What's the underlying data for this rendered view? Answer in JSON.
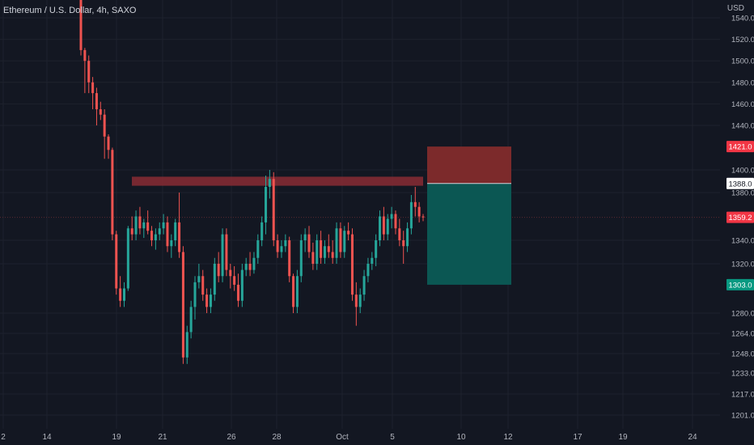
{
  "header": {
    "symbol_title": "Ethereum / U.S. Dollar, 4h, SAXO",
    "currency": "USD"
  },
  "colors": {
    "background": "#131722",
    "up": "#26a69a",
    "down": "#ef5350",
    "grid": "#1e222d",
    "axis_text": "#b2b5be",
    "resistance_zone": "#8a2c34",
    "stop_zone": "#7c2a2b",
    "target_zone": "#0b5753",
    "current_price_line": "#5a2a30"
  },
  "chart_data": {
    "type": "candlestick",
    "title": "Ethereum / U.S. Dollar, 4h, SAXO",
    "y_axis": {
      "unit": "USD",
      "ticks": [
        1540.0,
        1520.0,
        1500.0,
        1480.0,
        1460.0,
        1440.0,
        1400.0,
        1380.0,
        1340.0,
        1320.0,
        1280.0,
        1264.0,
        1248.0,
        1233.0,
        1217.0,
        1201.0
      ]
    },
    "x_axis": {
      "ticks": [
        "2",
        "14",
        "19",
        "21",
        "26",
        "28",
        "Oct",
        "5",
        "10",
        "12",
        "17",
        "19",
        "24"
      ]
    },
    "price_labels": [
      {
        "value": 1421.0,
        "label": "1421.0",
        "style": "red"
      },
      {
        "value": 1388.0,
        "label": "1388.0",
        "style": "white"
      },
      {
        "value": 1359.2,
        "label": "1359.2",
        "style": "red"
      },
      {
        "value": 1303.0,
        "label": "1303.0",
        "style": "green"
      }
    ],
    "resistance_zone": {
      "top": 1394,
      "bottom": 1386
    },
    "short_position": {
      "entry": 1388.0,
      "stop": 1421.0,
      "target": 1303.0
    },
    "current_price": 1359.2,
    "candles": [
      [
        1560,
        1560,
        1505,
        1510
      ],
      [
        1510,
        1512,
        1470,
        1500
      ],
      [
        1500,
        1505,
        1470,
        1480
      ],
      [
        1480,
        1485,
        1455,
        1470
      ],
      [
        1470,
        1475,
        1440,
        1455
      ],
      [
        1455,
        1462,
        1445,
        1450
      ],
      [
        1450,
        1455,
        1410,
        1430
      ],
      [
        1430,
        1432,
        1410,
        1418
      ],
      [
        1418,
        1420,
        1340,
        1345
      ],
      [
        1345,
        1348,
        1295,
        1300
      ],
      [
        1300,
        1310,
        1285,
        1290
      ],
      [
        1290,
        1305,
        1285,
        1300
      ],
      [
        1300,
        1352,
        1298,
        1350
      ],
      [
        1350,
        1360,
        1340,
        1345
      ],
      [
        1345,
        1365,
        1340,
        1360
      ],
      [
        1360,
        1368,
        1345,
        1350
      ],
      [
        1350,
        1358,
        1342,
        1355
      ],
      [
        1355,
        1365,
        1345,
        1348
      ],
      [
        1348,
        1352,
        1335,
        1340
      ],
      [
        1340,
        1350,
        1332,
        1345
      ],
      [
        1345,
        1355,
        1340,
        1350
      ],
      [
        1350,
        1362,
        1345,
        1355
      ],
      [
        1355,
        1360,
        1330,
        1335
      ],
      [
        1335,
        1345,
        1325,
        1340
      ],
      [
        1340,
        1358,
        1335,
        1355
      ],
      [
        1355,
        1380,
        1325,
        1330
      ],
      [
        1330,
        1335,
        1240,
        1245
      ],
      [
        1245,
        1270,
        1240,
        1265
      ],
      [
        1265,
        1290,
        1260,
        1285
      ],
      [
        1285,
        1310,
        1275,
        1305
      ],
      [
        1305,
        1320,
        1300,
        1310
      ],
      [
        1310,
        1315,
        1290,
        1295
      ],
      [
        1295,
        1300,
        1280,
        1285
      ],
      [
        1285,
        1300,
        1280,
        1295
      ],
      [
        1295,
        1325,
        1290,
        1320
      ],
      [
        1320,
        1330,
        1305,
        1310
      ],
      [
        1310,
        1350,
        1305,
        1345
      ],
      [
        1345,
        1350,
        1310,
        1315
      ],
      [
        1315,
        1320,
        1300,
        1310
      ],
      [
        1310,
        1318,
        1298,
        1303
      ],
      [
        1303,
        1312,
        1285,
        1290
      ],
      [
        1290,
        1320,
        1285,
        1315
      ],
      [
        1315,
        1325,
        1310,
        1320
      ],
      [
        1320,
        1330,
        1310,
        1315
      ],
      [
        1315,
        1330,
        1312,
        1325
      ],
      [
        1325,
        1345,
        1320,
        1340
      ],
      [
        1340,
        1360,
        1335,
        1355
      ],
      [
        1355,
        1395,
        1345,
        1385
      ],
      [
        1385,
        1400,
        1375,
        1392
      ],
      [
        1392,
        1398,
        1335,
        1340
      ],
      [
        1340,
        1345,
        1325,
        1330
      ],
      [
        1330,
        1340,
        1325,
        1335
      ],
      [
        1335,
        1345,
        1330,
        1340
      ],
      [
        1340,
        1343,
        1305,
        1310
      ],
      [
        1310,
        1312,
        1280,
        1285
      ],
      [
        1285,
        1315,
        1280,
        1310
      ],
      [
        1310,
        1345,
        1305,
        1340
      ],
      [
        1340,
        1350,
        1330,
        1345
      ],
      [
        1345,
        1352,
        1325,
        1330
      ],
      [
        1330,
        1338,
        1315,
        1320
      ],
      [
        1320,
        1345,
        1315,
        1340
      ],
      [
        1340,
        1348,
        1320,
        1325
      ],
      [
        1325,
        1340,
        1320,
        1335
      ],
      [
        1335,
        1345,
        1325,
        1330
      ],
      [
        1330,
        1340,
        1320,
        1325
      ],
      [
        1325,
        1355,
        1320,
        1350
      ],
      [
        1350,
        1355,
        1325,
        1330
      ],
      [
        1330,
        1352,
        1325,
        1348
      ],
      [
        1348,
        1355,
        1340,
        1345
      ],
      [
        1345,
        1350,
        1290,
        1295
      ],
      [
        1295,
        1305,
        1270,
        1285
      ],
      [
        1285,
        1300,
        1280,
        1295
      ],
      [
        1295,
        1315,
        1290,
        1310
      ],
      [
        1310,
        1325,
        1305,
        1320
      ],
      [
        1320,
        1330,
        1315,
        1325
      ],
      [
        1325,
        1345,
        1318,
        1340
      ],
      [
        1340,
        1365,
        1335,
        1360
      ],
      [
        1360,
        1368,
        1340,
        1345
      ],
      [
        1345,
        1362,
        1340,
        1358
      ],
      [
        1358,
        1368,
        1350,
        1362
      ],
      [
        1362,
        1365,
        1345,
        1350
      ],
      [
        1350,
        1358,
        1335,
        1340
      ],
      [
        1340,
        1348,
        1320,
        1335
      ],
      [
        1335,
        1355,
        1330,
        1350
      ],
      [
        1350,
        1378,
        1345,
        1372
      ],
      [
        1372,
        1385,
        1360,
        1368
      ],
      [
        1368,
        1372,
        1355,
        1360
      ],
      [
        1360,
        1362,
        1356,
        1359.2
      ]
    ]
  }
}
